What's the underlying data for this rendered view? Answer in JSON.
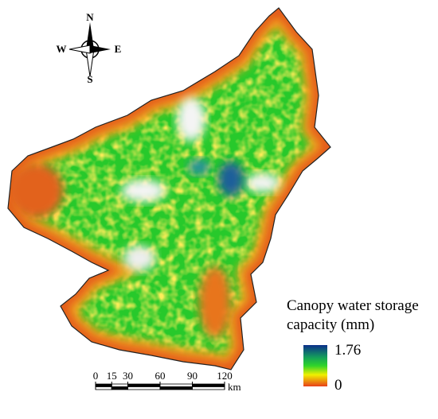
{
  "compass": {
    "north": "N",
    "south": "S",
    "east": "E",
    "west": "W"
  },
  "legend": {
    "title": [
      "Canopy water storage",
      "capacity (mm)"
    ],
    "max": "1.76",
    "min": "0"
  },
  "scale_bar": {
    "ticks": [
      0,
      15,
      30,
      60,
      90,
      120
    ],
    "unit": "km"
  }
}
